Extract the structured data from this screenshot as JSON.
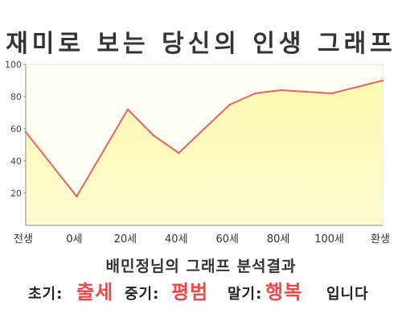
{
  "colors": {
    "line": "#e06666",
    "fill_top": "#fdf9b0",
    "fill_bottom": "#fffcd2",
    "plot_bg": "#fffff4",
    "plot_border": "#e2e2d6",
    "axis": "#8a8a8a",
    "highlight": "#f04848",
    "text": "#333333"
  },
  "chart_data": {
    "type": "area",
    "title": "재미로 보는 당신의 인생 그래프",
    "xlabel": "",
    "ylabel": "",
    "xlim": [
      -20,
      120
    ],
    "ylim": [
      0,
      100
    ],
    "xticks": [
      {
        "x": -20,
        "label": "전생"
      },
      {
        "x": 0,
        "label": "0세"
      },
      {
        "x": 20,
        "label": "20세"
      },
      {
        "x": 40,
        "label": "40세"
      },
      {
        "x": 60,
        "label": "60세"
      },
      {
        "x": 80,
        "label": "80세"
      },
      {
        "x": 100,
        "label": "100세"
      },
      {
        "x": 120,
        "label": "환생"
      }
    ],
    "yticks": [
      20,
      40,
      60,
      80,
      100
    ],
    "grid": false,
    "legend": "none",
    "series": [
      {
        "x": [
          -20,
          0,
          20,
          30,
          40,
          50,
          60,
          70,
          80,
          90,
          100,
          110,
          120
        ],
        "y": [
          58,
          18,
          72,
          56,
          45,
          60,
          75,
          82,
          84,
          83,
          82,
          86,
          90
        ]
      }
    ]
  },
  "result": {
    "heading": "배민정님의 그래프 분석결과",
    "early_label": "초기:",
    "early_value": "출세",
    "mid_label": "중기:",
    "mid_value": "평범",
    "late_label": "말기:",
    "late_value": "행복",
    "ending": "입니다"
  }
}
